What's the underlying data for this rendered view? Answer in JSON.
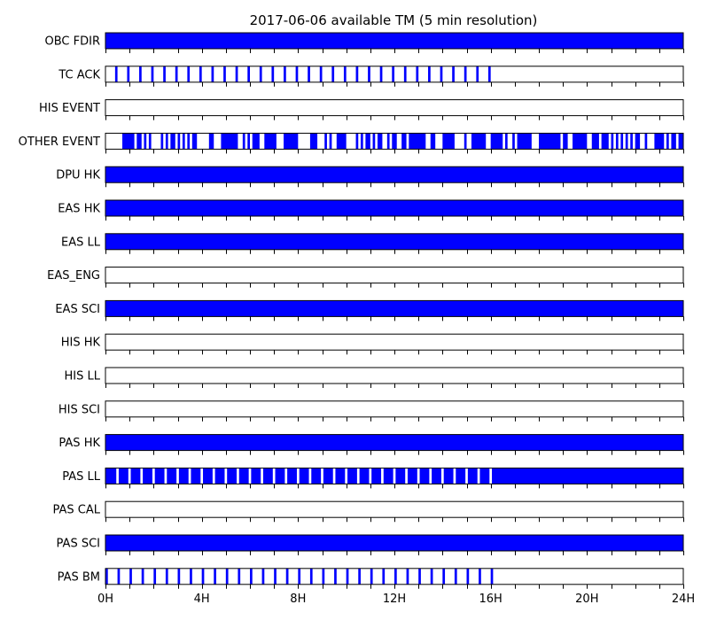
{
  "chart_data": {
    "type": "timeline",
    "title": "2017-06-06 available TM (5 min resolution)",
    "x_unit": "hours",
    "xlim": [
      0,
      24
    ],
    "x_ticks": [
      0,
      4,
      8,
      12,
      16,
      20,
      24
    ],
    "x_tick_labels": [
      "0H",
      "4H",
      "8H",
      "12H",
      "16H",
      "20H",
      "24H"
    ],
    "minor_tick_step_hours": 1,
    "fill_color": "#0000ff",
    "rows": [
      {
        "label": "OBC FDIR",
        "intervals": [
          [
            0,
            24
          ]
        ]
      },
      {
        "label": "TC ACK",
        "intervals": [
          [
            0.4,
            0.5
          ],
          [
            0.9,
            1.0
          ],
          [
            1.4,
            1.5
          ],
          [
            1.9,
            2.0
          ],
          [
            2.4,
            2.5
          ],
          [
            2.9,
            3.0
          ],
          [
            3.4,
            3.5
          ],
          [
            3.9,
            4.0
          ],
          [
            4.4,
            4.5
          ],
          [
            4.9,
            5.0
          ],
          [
            5.4,
            5.5
          ],
          [
            5.9,
            6.0
          ],
          [
            6.4,
            6.5
          ],
          [
            6.9,
            7.0
          ],
          [
            7.4,
            7.5
          ],
          [
            7.9,
            8.0
          ],
          [
            8.4,
            8.5
          ],
          [
            8.9,
            9.0
          ],
          [
            9.4,
            9.5
          ],
          [
            9.9,
            10.0
          ],
          [
            10.4,
            10.5
          ],
          [
            10.9,
            11.0
          ],
          [
            11.4,
            11.5
          ],
          [
            11.9,
            12.0
          ],
          [
            12.4,
            12.5
          ],
          [
            12.9,
            13.0
          ],
          [
            13.4,
            13.5
          ],
          [
            13.9,
            14.0
          ],
          [
            14.4,
            14.5
          ],
          [
            14.9,
            15.0
          ],
          [
            15.4,
            15.5
          ],
          [
            15.9,
            16.0
          ]
        ]
      },
      {
        "label": "HIS EVENT",
        "intervals": []
      },
      {
        "label": "OTHER EVENT",
        "intervals": [
          [
            0.7,
            1.2
          ],
          [
            1.3,
            1.5
          ],
          [
            1.6,
            1.7
          ],
          [
            1.8,
            1.9
          ],
          [
            2.3,
            2.4
          ],
          [
            2.5,
            2.6
          ],
          [
            2.7,
            2.9
          ],
          [
            3.0,
            3.1
          ],
          [
            3.2,
            3.3
          ],
          [
            3.4,
            3.5
          ],
          [
            3.6,
            3.8
          ],
          [
            4.3,
            4.5
          ],
          [
            4.8,
            5.5
          ],
          [
            5.7,
            5.8
          ],
          [
            5.9,
            6.0
          ],
          [
            6.1,
            6.4
          ],
          [
            6.6,
            7.1
          ],
          [
            7.4,
            8.0
          ],
          [
            8.5,
            8.8
          ],
          [
            9.1,
            9.2
          ],
          [
            9.3,
            9.4
          ],
          [
            9.6,
            10.0
          ],
          [
            10.4,
            10.5
          ],
          [
            10.6,
            10.7
          ],
          [
            10.8,
            11.0
          ],
          [
            11.1,
            11.2
          ],
          [
            11.3,
            11.5
          ],
          [
            11.7,
            11.8
          ],
          [
            11.9,
            12.1
          ],
          [
            12.3,
            12.5
          ],
          [
            12.6,
            13.3
          ],
          [
            13.5,
            13.7
          ],
          [
            14.0,
            14.5
          ],
          [
            14.9,
            15.0
          ],
          [
            15.2,
            15.8
          ],
          [
            16.0,
            16.5
          ],
          [
            16.6,
            16.7
          ],
          [
            16.9,
            17.0
          ],
          [
            17.1,
            17.7
          ],
          [
            18.0,
            18.9
          ],
          [
            19.0,
            19.2
          ],
          [
            19.4,
            20.0
          ],
          [
            20.2,
            20.5
          ],
          [
            20.6,
            20.9
          ],
          [
            21.0,
            21.1
          ],
          [
            21.2,
            21.3
          ],
          [
            21.4,
            21.5
          ],
          [
            21.6,
            21.7
          ],
          [
            21.8,
            21.9
          ],
          [
            22.0,
            22.2
          ],
          [
            22.4,
            22.5
          ],
          [
            22.8,
            23.2
          ],
          [
            23.3,
            23.4
          ],
          [
            23.5,
            23.7
          ],
          [
            23.8,
            24.0
          ]
        ]
      },
      {
        "label": "DPU HK",
        "intervals": [
          [
            0,
            24
          ]
        ]
      },
      {
        "label": "EAS HK",
        "intervals": [
          [
            0,
            24
          ]
        ]
      },
      {
        "label": "EAS LL",
        "intervals": [
          [
            0,
            24
          ]
        ]
      },
      {
        "label": "EAS_ENG",
        "intervals": []
      },
      {
        "label": "EAS SCI",
        "intervals": [
          [
            0,
            24
          ]
        ]
      },
      {
        "label": "HIS HK",
        "intervals": []
      },
      {
        "label": "HIS LL",
        "intervals": []
      },
      {
        "label": "HIS SCI",
        "intervals": []
      },
      {
        "label": "PAS HK",
        "intervals": [
          [
            0,
            24
          ]
        ]
      },
      {
        "label": "PAS LL",
        "intervals": [
          [
            0,
            0.45
          ],
          [
            0.55,
            0.95
          ],
          [
            1.05,
            1.45
          ],
          [
            1.55,
            1.95
          ],
          [
            2.05,
            2.45
          ],
          [
            2.55,
            2.95
          ],
          [
            3.05,
            3.45
          ],
          [
            3.55,
            3.95
          ],
          [
            4.05,
            4.45
          ],
          [
            4.55,
            4.95
          ],
          [
            5.05,
            5.45
          ],
          [
            5.55,
            5.95
          ],
          [
            6.05,
            6.45
          ],
          [
            6.55,
            6.95
          ],
          [
            7.05,
            7.45
          ],
          [
            7.55,
            7.95
          ],
          [
            8.05,
            8.45
          ],
          [
            8.55,
            8.95
          ],
          [
            9.05,
            9.45
          ],
          [
            9.55,
            9.95
          ],
          [
            10.05,
            10.45
          ],
          [
            10.55,
            10.95
          ],
          [
            11.05,
            11.45
          ],
          [
            11.55,
            11.95
          ],
          [
            12.05,
            12.45
          ],
          [
            12.55,
            12.95
          ],
          [
            13.05,
            13.45
          ],
          [
            13.55,
            13.95
          ],
          [
            14.05,
            14.45
          ],
          [
            14.55,
            14.95
          ],
          [
            15.05,
            15.45
          ],
          [
            15.55,
            15.95
          ],
          [
            16.05,
            24
          ]
        ]
      },
      {
        "label": "PAS CAL",
        "intervals": []
      },
      {
        "label": "PAS SCI",
        "intervals": [
          [
            0,
            24
          ]
        ]
      },
      {
        "label": "PAS BM",
        "intervals": [
          [
            0.0,
            0.1
          ],
          [
            0.5,
            0.6
          ],
          [
            1.0,
            1.1
          ],
          [
            1.5,
            1.6
          ],
          [
            2.0,
            2.1
          ],
          [
            2.5,
            2.6
          ],
          [
            3.0,
            3.1
          ],
          [
            3.5,
            3.6
          ],
          [
            4.0,
            4.1
          ],
          [
            4.5,
            4.6
          ],
          [
            5.0,
            5.1
          ],
          [
            5.5,
            5.6
          ],
          [
            6.0,
            6.1
          ],
          [
            6.5,
            6.6
          ],
          [
            7.0,
            7.1
          ],
          [
            7.5,
            7.6
          ],
          [
            8.0,
            8.1
          ],
          [
            8.5,
            8.6
          ],
          [
            9.0,
            9.1
          ],
          [
            9.5,
            9.6
          ],
          [
            10.0,
            10.1
          ],
          [
            10.5,
            10.6
          ],
          [
            11.0,
            11.1
          ],
          [
            11.5,
            11.6
          ],
          [
            12.0,
            12.1
          ],
          [
            12.5,
            12.6
          ],
          [
            13.0,
            13.1
          ],
          [
            13.5,
            13.6
          ],
          [
            14.0,
            14.1
          ],
          [
            14.5,
            14.6
          ],
          [
            15.0,
            15.1
          ],
          [
            15.5,
            15.6
          ],
          [
            16.0,
            16.1
          ]
        ]
      }
    ]
  }
}
